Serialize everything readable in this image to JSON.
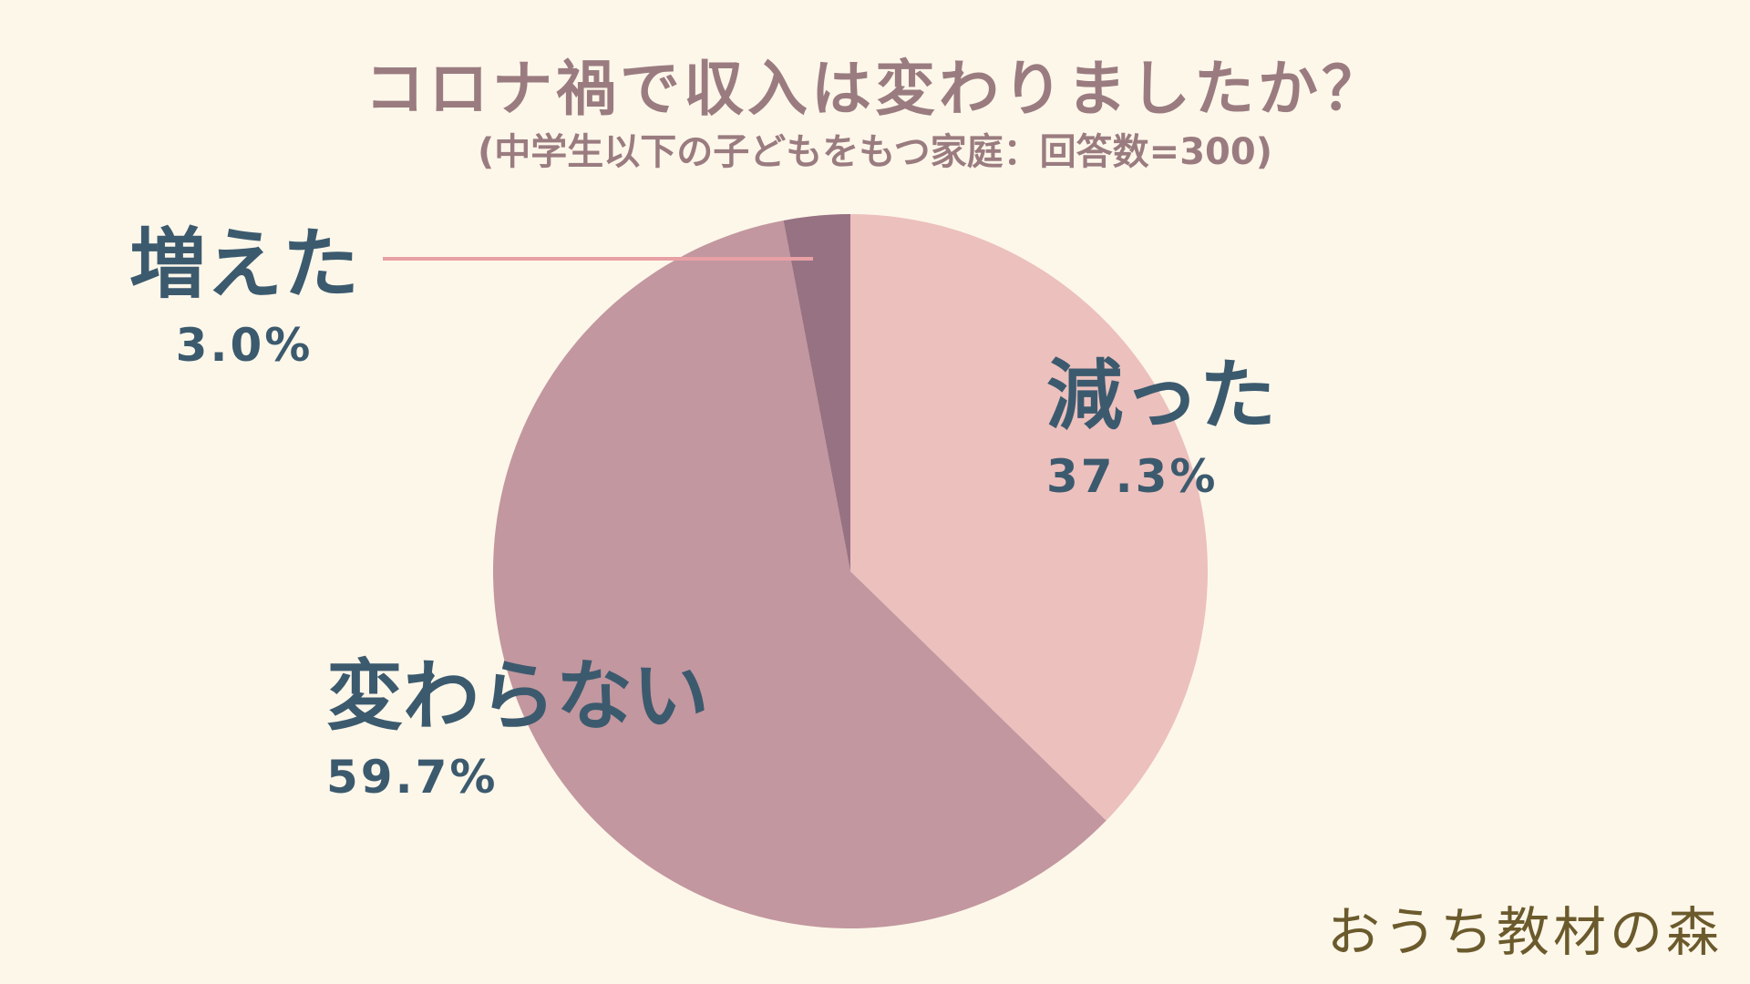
{
  "title": "コロナ禍で収入は変わりましたか？",
  "subtitle": "(中学生以下の子どもをもつ家庭：回答数=300)",
  "logo": "おうち教材の森",
  "chart_data": {
    "type": "pie",
    "title": "コロナ禍で収入は変わりましたか？",
    "subtitle": "(中学生以下の子どもをもつ家庭：回答数=300)",
    "slices": [
      {
        "label": "減った",
        "value": 37.3,
        "value_label": "37.3%",
        "color": "#ecc0bd"
      },
      {
        "label": "変わらない",
        "value": 59.7,
        "value_label": "59.7%",
        "color": "#c2979f"
      },
      {
        "label": "増えた",
        "value": 3.0,
        "value_label": "3.0%",
        "color": "#977283"
      }
    ],
    "start": "top",
    "direction": "clockwise",
    "leader_line_color": "#e8a0a4"
  }
}
